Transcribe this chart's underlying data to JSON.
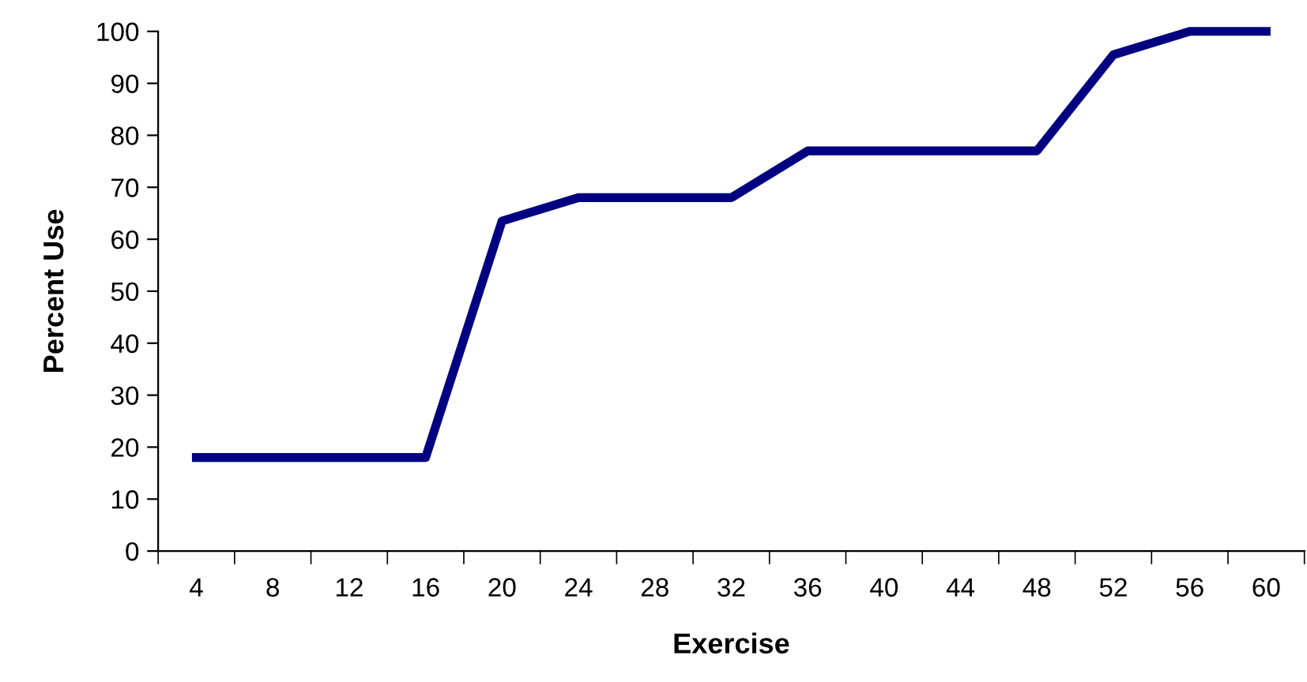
{
  "chart_data": {
    "type": "line",
    "xlabel": "Exercise",
    "ylabel": "Percent Use",
    "categories": [
      "4",
      "8",
      "12",
      "16",
      "20",
      "24",
      "28",
      "32",
      "36",
      "40",
      "44",
      "48",
      "52",
      "56",
      "60"
    ],
    "series": [
      {
        "color": "#000080",
        "values": [
          18,
          18,
          18,
          18,
          63.5,
          68,
          68,
          68,
          77,
          77,
          77,
          77,
          95.5,
          100,
          100
        ]
      }
    ],
    "ylim": [
      0,
      100
    ],
    "yticks": [
      0,
      10,
      20,
      30,
      40,
      50,
      60,
      70,
      80,
      90,
      100
    ],
    "grid": false,
    "legend": false,
    "marker": "none",
    "line_style": "solid"
  }
}
